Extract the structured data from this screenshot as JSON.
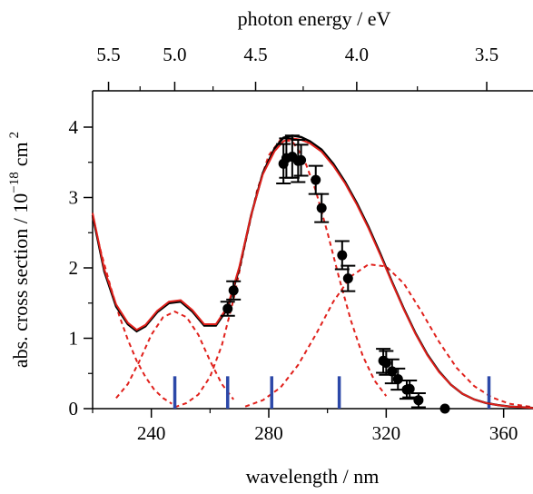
{
  "chart_data": {
    "type": "line",
    "xlabel": "wavelength / nm",
    "top_xlabel": "photon energy / eV",
    "ylabel_main": "abs. cross section / 10",
    "ylabel_exp1": "−18",
    "ylabel_unit": "cm",
    "ylabel_exp2": "2",
    "xlim": [
      220,
      370
    ],
    "ylim": [
      0,
      4.5
    ],
    "x_ticks": [
      {
        "value": 240,
        "label": "240"
      },
      {
        "value": 280,
        "label": "280"
      },
      {
        "value": 320,
        "label": "320"
      },
      {
        "value": 360,
        "label": "360"
      }
    ],
    "y_ticks": [
      {
        "value": 0,
        "label": "0"
      },
      {
        "value": 1,
        "label": "1"
      },
      {
        "value": 2,
        "label": "2"
      },
      {
        "value": 3,
        "label": "3"
      },
      {
        "value": 4,
        "label": "4"
      }
    ],
    "top_ticks": [
      {
        "energy_eV": 5.5,
        "label": "5.5"
      },
      {
        "energy_eV": 5.0,
        "label": "5.0"
      },
      {
        "energy_eV": 4.5,
        "label": "4.5"
      },
      {
        "energy_eV": 4.0,
        "label": "4.0"
      },
      {
        "energy_eV": 3.5,
        "label": "3.5"
      }
    ],
    "top_minor_ticks_eV": [
      5.25,
      4.75,
      4.25,
      3.75
    ],
    "grid": false,
    "legend": "none",
    "colors": {
      "total_black": "#000000",
      "total_red": "#e0201b",
      "components": "#e0201b",
      "sticks": "#2c48a8",
      "points": "#000000"
    },
    "total_black_curve": {
      "x": [
        220,
        224,
        228,
        232,
        235,
        238,
        242,
        246,
        250,
        254,
        258,
        262,
        266,
        270,
        274,
        278,
        282,
        285,
        288,
        291,
        294,
        298,
        302,
        306,
        310,
        314,
        318,
        322,
        326,
        330,
        334,
        338,
        342,
        346,
        350,
        354,
        358,
        362,
        366,
        370
      ],
      "y": [
        2.75,
        1.95,
        1.45,
        1.2,
        1.1,
        1.17,
        1.37,
        1.5,
        1.52,
        1.38,
        1.18,
        1.18,
        1.42,
        2.0,
        2.75,
        3.35,
        3.7,
        3.85,
        3.88,
        3.86,
        3.8,
        3.68,
        3.48,
        3.22,
        2.92,
        2.58,
        2.2,
        1.8,
        1.42,
        1.07,
        0.77,
        0.53,
        0.34,
        0.21,
        0.13,
        0.08,
        0.05,
        0.03,
        0.02,
        0.01
      ]
    },
    "total_red_curve": {
      "x": [
        220,
        224,
        228,
        232,
        235,
        238,
        242,
        246,
        250,
        254,
        258,
        262,
        266,
        270,
        274,
        278,
        282,
        285,
        288,
        291,
        294,
        298,
        302,
        306,
        310,
        314,
        318,
        322,
        326,
        330,
        334,
        338,
        342,
        346,
        350,
        354,
        358,
        362,
        366,
        370
      ],
      "y": [
        2.78,
        1.98,
        1.48,
        1.22,
        1.12,
        1.19,
        1.39,
        1.52,
        1.54,
        1.4,
        1.2,
        1.2,
        1.45,
        2.02,
        2.75,
        3.33,
        3.66,
        3.8,
        3.84,
        3.82,
        3.77,
        3.65,
        3.45,
        3.2,
        2.9,
        2.56,
        2.18,
        1.79,
        1.41,
        1.06,
        0.76,
        0.52,
        0.34,
        0.21,
        0.13,
        0.08,
        0.05,
        0.03,
        0.02,
        0.01
      ]
    },
    "component_curves": [
      {
        "x": [
          220,
          223,
          226,
          229,
          232,
          235,
          238,
          241,
          244,
          247
        ],
        "y": [
          2.72,
          2.2,
          1.75,
          1.33,
          0.98,
          0.68,
          0.45,
          0.27,
          0.15,
          0.07
        ]
      },
      {
        "x": [
          228,
          232,
          236,
          240,
          244,
          248,
          252,
          256,
          260,
          264,
          268
        ],
        "y": [
          0.15,
          0.35,
          0.68,
          1.05,
          1.3,
          1.38,
          1.3,
          1.05,
          0.68,
          0.35,
          0.13
        ]
      },
      {
        "x": [
          248,
          252,
          256,
          260,
          264,
          268,
          272,
          276,
          280,
          284,
          288,
          292,
          296,
          300,
          304,
          308,
          312,
          316,
          320
        ],
        "y": [
          0.02,
          0.08,
          0.2,
          0.45,
          0.9,
          1.55,
          2.35,
          3.1,
          3.6,
          3.82,
          3.8,
          3.55,
          3.1,
          2.5,
          1.85,
          1.25,
          0.75,
          0.4,
          0.18
        ]
      },
      {
        "x": [
          272,
          278,
          284,
          290,
          296,
          302,
          308,
          314,
          320,
          326,
          332,
          338,
          344,
          350,
          356,
          362,
          370
        ],
        "y": [
          0.03,
          0.12,
          0.3,
          0.62,
          1.05,
          1.52,
          1.88,
          2.05,
          2.02,
          1.78,
          1.38,
          0.95,
          0.58,
          0.32,
          0.16,
          0.07,
          0.02
        ]
      }
    ],
    "sticks": {
      "x": [
        248,
        266,
        281,
        304,
        355
      ],
      "y_top": 0.46
    },
    "data_points": {
      "x": [
        266,
        268,
        285,
        286,
        288,
        290,
        291,
        296,
        298,
        305,
        307,
        319,
        320,
        322,
        324,
        327,
        328,
        331,
        340
      ],
      "y": [
        1.42,
        1.68,
        3.48,
        3.56,
        3.58,
        3.52,
        3.53,
        3.25,
        2.85,
        2.18,
        1.85,
        0.68,
        0.65,
        0.53,
        0.42,
        0.27,
        0.28,
        0.12,
        0.0
      ],
      "err": [
        0.1,
        0.13,
        0.28,
        0.28,
        0.3,
        0.3,
        0.22,
        0.2,
        0.2,
        0.2,
        0.18,
        0.17,
        0.17,
        0.17,
        0.15,
        0.13,
        0.12,
        0.1,
        0.0
      ]
    }
  }
}
